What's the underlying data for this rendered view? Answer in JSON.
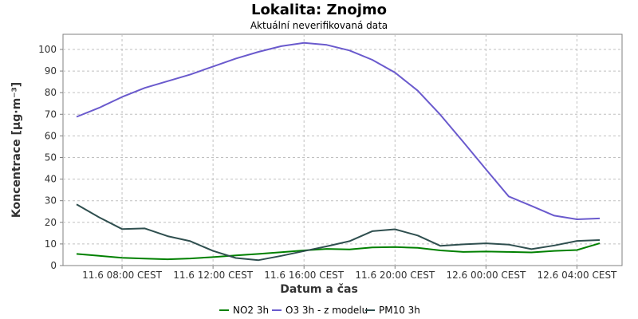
{
  "chart_data": {
    "type": "line",
    "title": "Lokalita: Znojmo",
    "subtitle": "Aktuální neverifikovaná data",
    "xlabel": "Datum a čas",
    "ylabel": "Koncentrace [µg·m⁻³]",
    "x": [
      "11.6 06:00",
      "11.6 07:00",
      "11.6 08:00",
      "11.6 09:00",
      "11.6 10:00",
      "11.6 11:00",
      "11.6 12:00",
      "11.6 13:00",
      "11.6 14:00",
      "11.6 15:00",
      "11.6 16:00",
      "11.6 17:00",
      "11.6 18:00",
      "11.6 19:00",
      "11.6 20:00",
      "11.6 21:00",
      "11.6 22:00",
      "11.6 23:00",
      "12.6 00:00",
      "12.6 01:00",
      "12.6 02:00",
      "12.6 03:00",
      "12.6 04:00",
      "12.6 05:00"
    ],
    "x_ticks": [
      "11.6 08:00 CEST",
      "11.6 12:00 CEST",
      "11.6 16:00 CEST",
      "11.6 20:00 CEST",
      "12.6 00:00 CEST",
      "12.6 04:00 CEST"
    ],
    "x_tick_index": [
      2,
      6,
      10,
      14,
      18,
      22
    ],
    "ylim": [
      0,
      107
    ],
    "y_ticks": [
      0,
      10,
      20,
      30,
      40,
      50,
      60,
      70,
      80,
      90,
      100
    ],
    "grid": true,
    "legend": "bottom",
    "series": [
      {
        "name": "NO2 3h",
        "color": "#008000",
        "values": [
          5.4,
          4.5,
          3.6,
          3.2,
          2.9,
          3.3,
          3.9,
          4.7,
          5.4,
          6.2,
          7.0,
          7.7,
          7.5,
          8.4,
          8.6,
          8.2,
          7.0,
          6.3,
          6.5,
          6.3,
          6.1,
          6.8,
          7.2,
          10.3
        ]
      },
      {
        "name": "O3 3h - z modelu",
        "color": "#6a5acd",
        "values": [
          68.8,
          73.0,
          78.0,
          82.2,
          85.3,
          88.4,
          92.1,
          95.8,
          98.9,
          101.5,
          103.0,
          102.1,
          99.5,
          95.2,
          89.3,
          80.9,
          69.7,
          57.2,
          44.5,
          32.0,
          27.6,
          23.1,
          21.4,
          21.8
        ]
      },
      {
        "name": "PM10 3h",
        "color": "#2f4f4f",
        "values": [
          28.3,
          22.3,
          16.9,
          17.2,
          13.6,
          11.3,
          6.8,
          3.5,
          2.5,
          4.5,
          6.7,
          8.9,
          11.3,
          15.9,
          16.8,
          13.9,
          9.1,
          9.8,
          10.3,
          9.7,
          7.6,
          9.3,
          11.4,
          11.8
        ]
      }
    ]
  }
}
